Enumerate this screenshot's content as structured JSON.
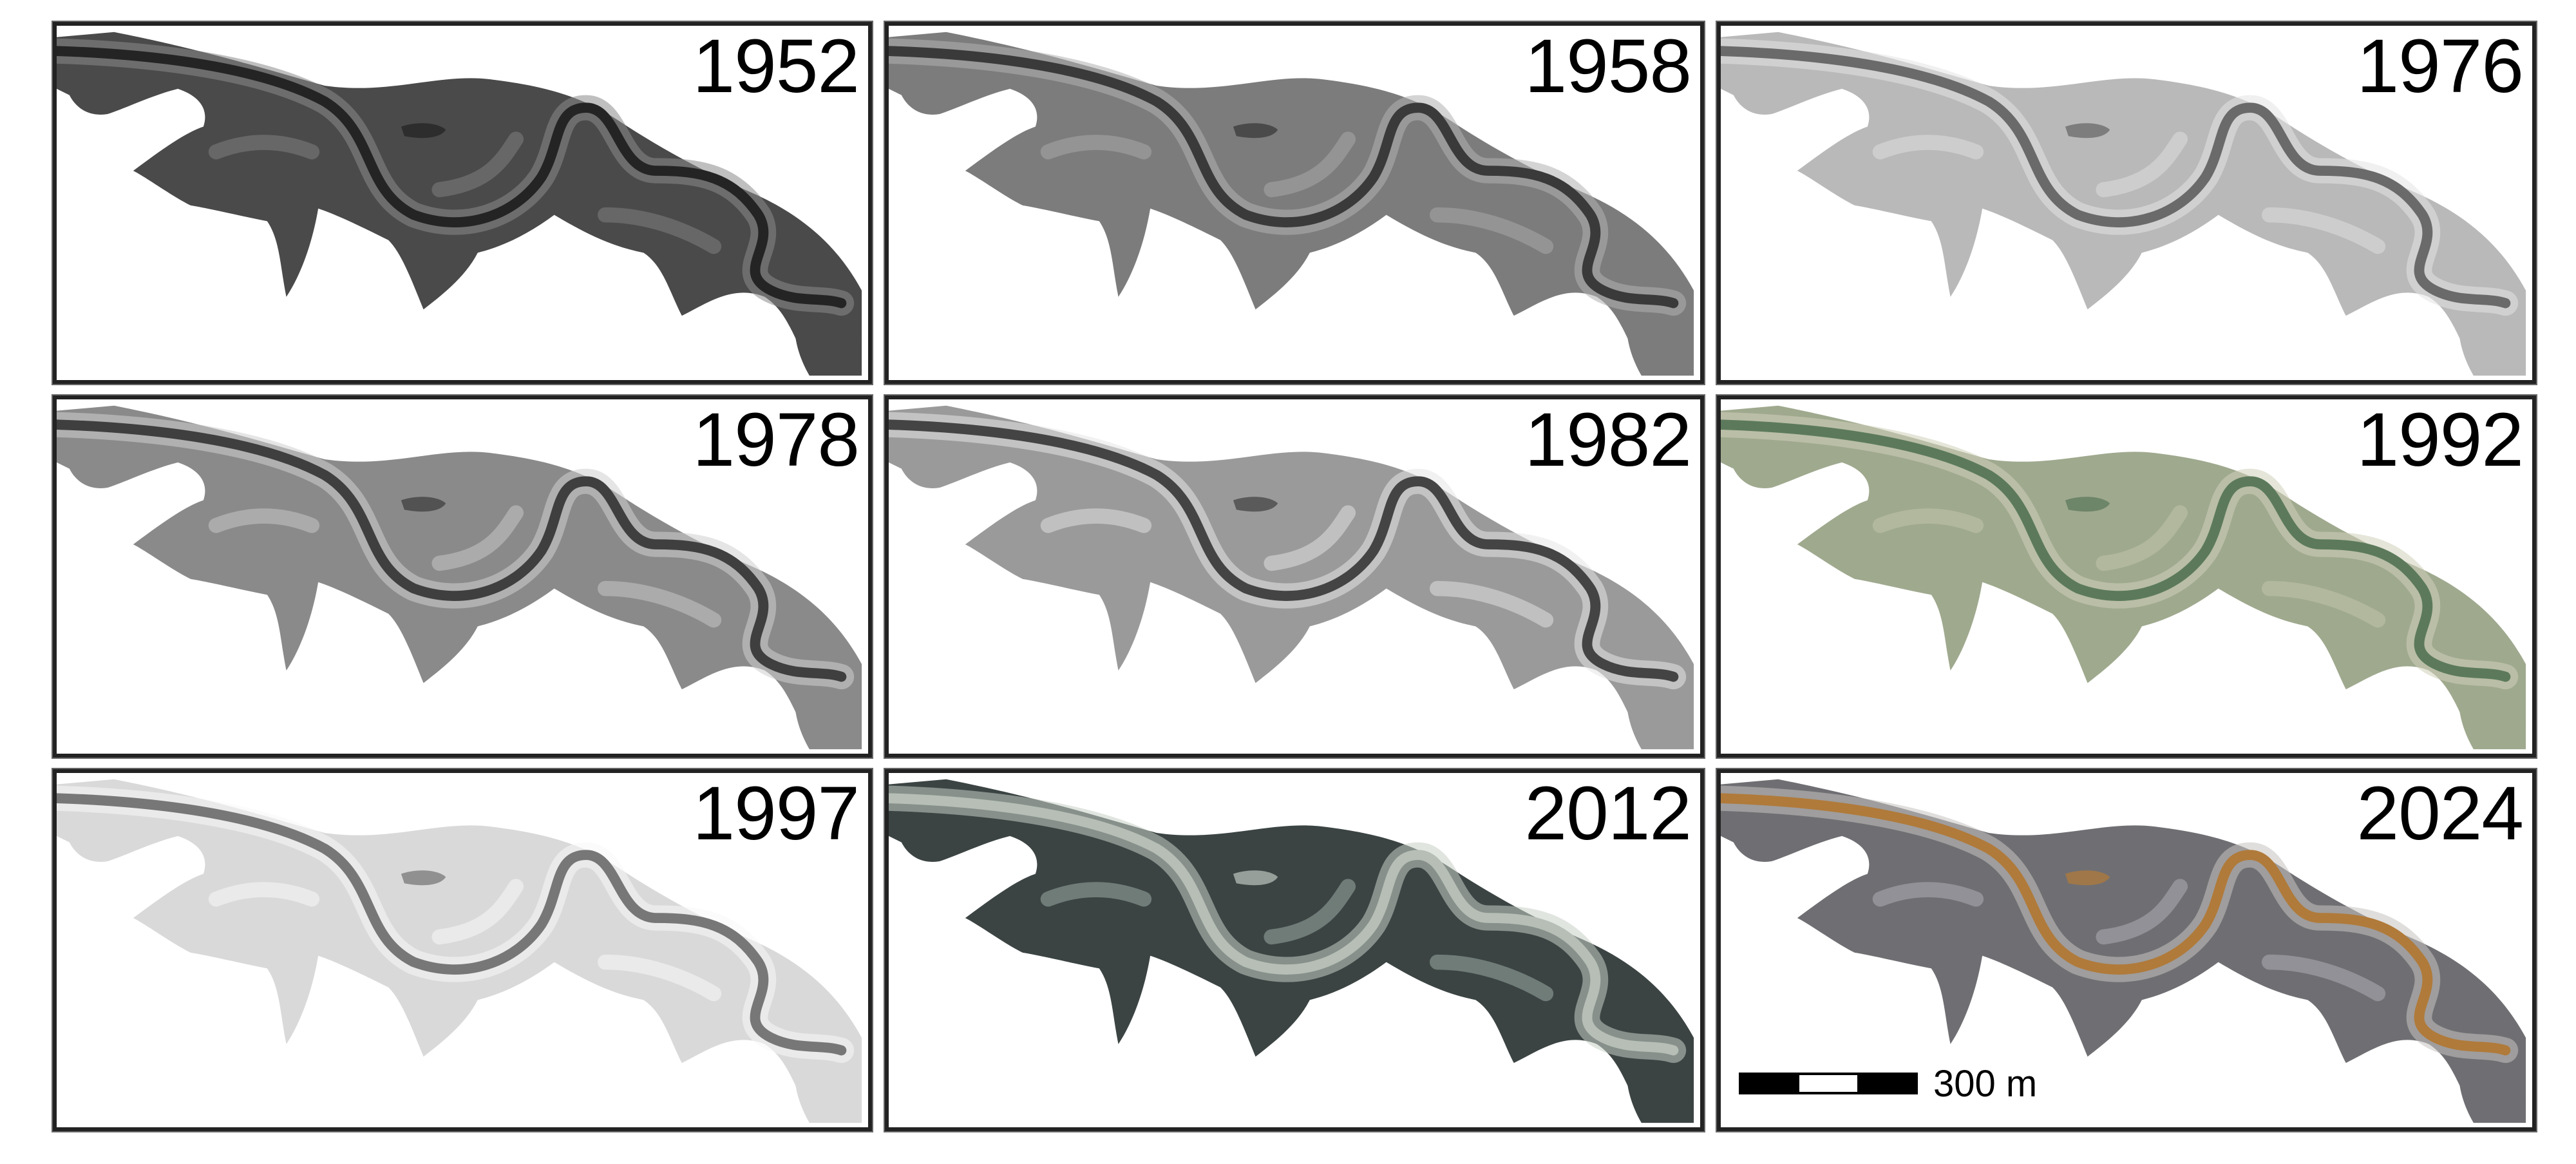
{
  "panels": [
    {
      "year": "1952",
      "land": "#4a4a4a",
      "mid": "#6e6e6e",
      "channel": "#242424",
      "light": "#8a8a8a"
    },
    {
      "year": "1958",
      "land": "#7c7c7c",
      "mid": "#9a9a9a",
      "channel": "#3a3a3a",
      "light": "#b0b0b0"
    },
    {
      "year": "1976",
      "land": "#b9b9b9",
      "mid": "#d2d2d2",
      "channel": "#6a6a6a",
      "light": "#e3e3e3"
    },
    {
      "year": "1978",
      "land": "#8a8a8a",
      "mid": "#b3b3b3",
      "channel": "#3f3f3f",
      "light": "#cfcfcf"
    },
    {
      "year": "1982",
      "land": "#9a9a9a",
      "mid": "#c9c9c9",
      "channel": "#444444",
      "light": "#e6e6e6"
    },
    {
      "year": "1992",
      "land": "#9fa98e",
      "mid": "#b7bba1",
      "channel": "#5c7a5b",
      "light": "#cfcfb9"
    },
    {
      "year": "1997",
      "land": "#d9d9d9",
      "mid": "#eeeeee",
      "channel": "#777777",
      "light": "#f7f7f7"
    },
    {
      "year": "2012",
      "land": "#3b4443",
      "mid": "#7d8b86",
      "channel": "#b6beb6",
      "light": "#c7cfc7"
    },
    {
      "year": "2024",
      "land": "#6f6f73",
      "mid": "#9b9aa0",
      "channel": "#b07a3a",
      "light": "#c6c3bf"
    }
  ],
  "scale_bar": {
    "label": "300 m"
  }
}
